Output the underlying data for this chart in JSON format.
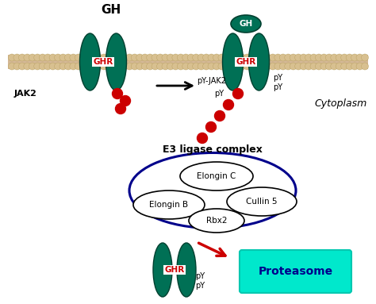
{
  "bg_color": "#ffffff",
  "receptor_color": "#007055",
  "receptor_edge": "#004030",
  "ghr_text_color": "#cc0000",
  "py_dot_color": "#cc0000",
  "red_arrow_color": "#cc0000",
  "e3_ellipse_color": "#00008b",
  "proteasome_box_color": "#00e8cc",
  "proteasome_text_color": "#00008b",
  "title_text": "GH",
  "cytoplasm_text": "Cytoplasm",
  "e3_label": "E3 ligase complex",
  "proteasome_label": "Proteasome",
  "jak2_label": "JAK2",
  "pyjak2_label": "pY-JAK2",
  "py_label": "pY",
  "gh_label": "GH",
  "mem_bead_color": "#d8c090",
  "mem_bead_edge": "#b8a060",
  "mem_line_color": "#c8a870"
}
